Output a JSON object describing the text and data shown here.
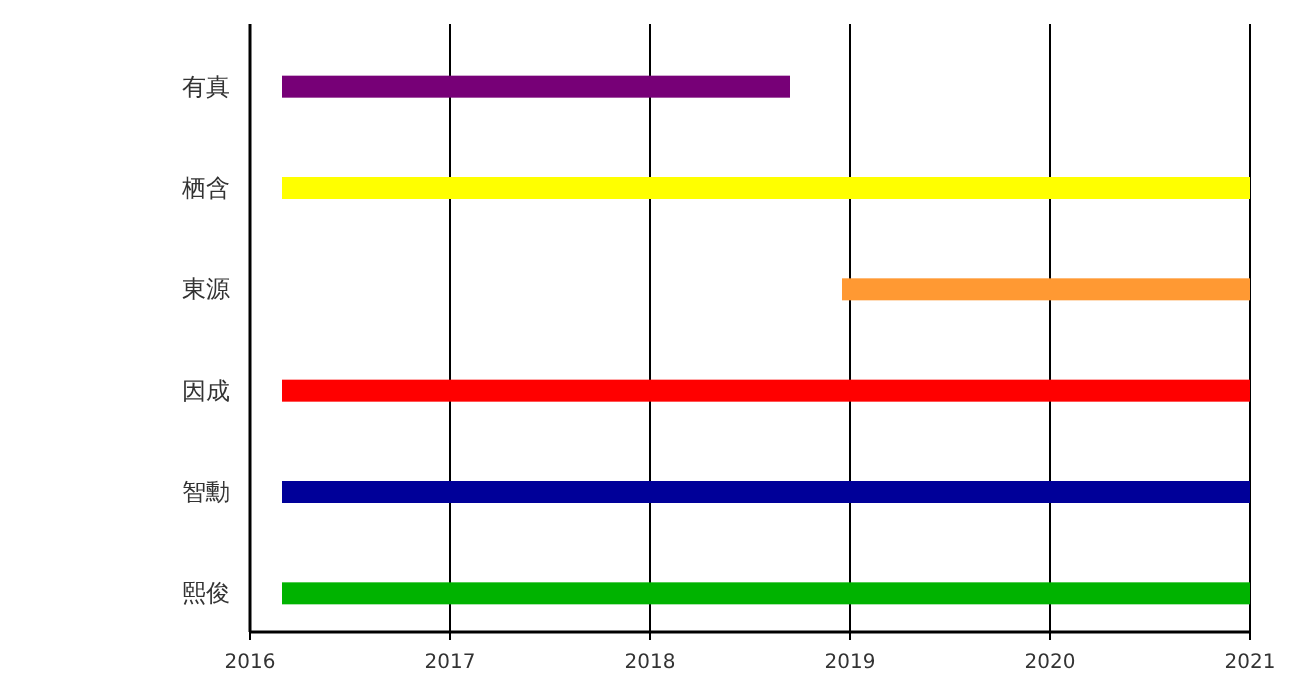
{
  "chart_data": {
    "type": "bar",
    "orientation": "horizontal",
    "categories": [
      "有真",
      "栖含",
      "東源",
      "因成",
      "智勳",
      "熙俊"
    ],
    "base": [
      2016.16,
      2016.16,
      2018.96,
      2016.16,
      2016.16,
      2016.16
    ],
    "values": [
      2.54,
      4.84,
      2.04,
      4.84,
      4.84,
      4.84
    ],
    "colors": [
      "#770077",
      "#ffff00",
      "#ff9933",
      "#ff0000",
      "#000099",
      "#00b300"
    ],
    "xlim": [
      2016,
      2021
    ],
    "xticks": [
      2016,
      2017,
      2018,
      2019,
      2020,
      2021
    ],
    "grid": "x"
  }
}
